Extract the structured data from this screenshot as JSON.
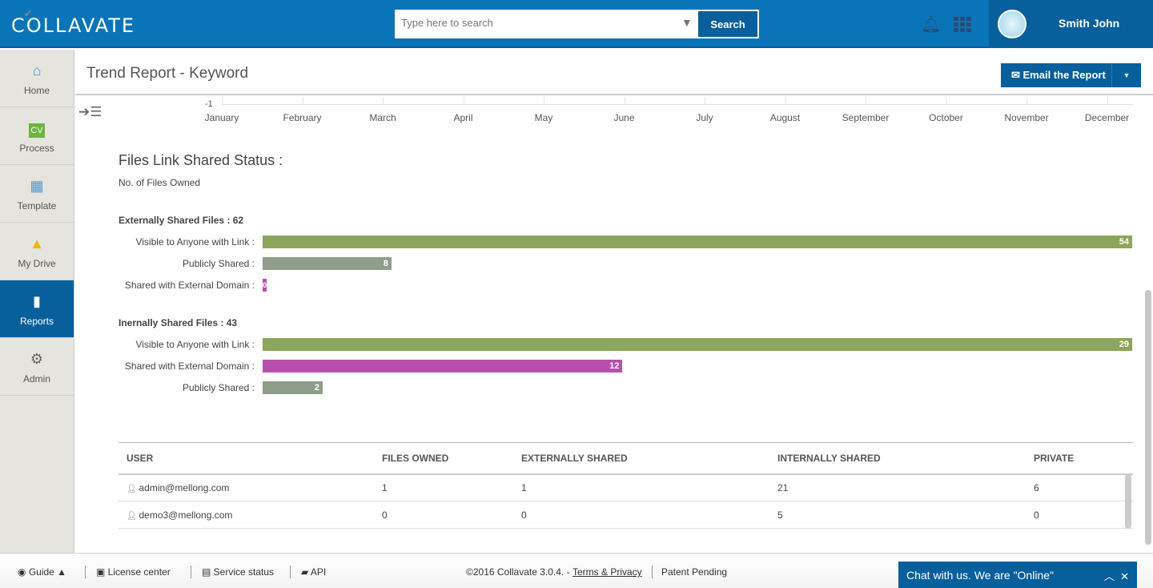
{
  "header": {
    "logo": "COLLAVATE",
    "search_placeholder": "Type here to search",
    "search_label": "Search",
    "user_name": "Smith John"
  },
  "sidebar": {
    "items": [
      {
        "label": "Home",
        "icon": "home-icon"
      },
      {
        "label": "Process",
        "icon": "cv-icon"
      },
      {
        "label": "Template",
        "icon": "template-icon"
      },
      {
        "label": "My Drive",
        "icon": "drive-icon"
      },
      {
        "label": "Reports",
        "icon": "reports-icon",
        "active": true
      },
      {
        "label": "Admin",
        "icon": "gear-icon"
      }
    ]
  },
  "page": {
    "title": "Trend Report - Keyword",
    "email_label": "Email the Report"
  },
  "trend_axis": {
    "y_tick": "-1",
    "months": [
      "January",
      "February",
      "March",
      "April",
      "May",
      "June",
      "July",
      "August",
      "September",
      "October",
      "November",
      "December"
    ]
  },
  "report": {
    "title": "Files Link Shared Status :",
    "subtitle": "No. of Files Owned"
  },
  "chart_data": {
    "type": "bar",
    "orientation": "horizontal",
    "colors": {
      "visible": "#8ba55a",
      "public": "#8e9e8a",
      "external": "#b84fae"
    },
    "groups": [
      {
        "title": "Externally Shared Files : 62",
        "bars": [
          {
            "label": "Visible to Anyone with Link :",
            "value": 54,
            "color": "#8ba55a"
          },
          {
            "label": "Publicly Shared :",
            "value": 8,
            "color": "#8e9e8a"
          },
          {
            "label": "Shared with External Domain :",
            "value": 0,
            "color": "#b84fae"
          }
        ]
      },
      {
        "title": "Inernally Shared Files : 43",
        "bars": [
          {
            "label": "Visible to Anyone with Link :",
            "value": 29,
            "color": "#8ba55a"
          },
          {
            "label": "Shared with External Domain :",
            "value": 12,
            "color": "#b84fae"
          },
          {
            "label": "Publicly Shared :",
            "value": 2,
            "color": "#8e9e8a"
          }
        ]
      }
    ]
  },
  "table": {
    "headers": [
      "USER",
      "FILES OWNED",
      "EXTERNALLY SHARED",
      "INTERNALLY SHARED",
      "PRIVATE"
    ],
    "rows": [
      [
        "admin@mellong.com",
        "1",
        "1",
        "21",
        "6"
      ],
      [
        "demo3@mellong.com",
        "0",
        "0",
        "5",
        "0"
      ]
    ]
  },
  "footer": {
    "guide": "Guide ▲",
    "license": "License center",
    "service": "Service status",
    "api": "API",
    "copyright": "©2016 Collavate 3.0.4. -",
    "terms": "Terms & Privacy",
    "patent": "Patent Pending"
  },
  "chat": {
    "label": "Chat with us. We are \"Online\""
  }
}
